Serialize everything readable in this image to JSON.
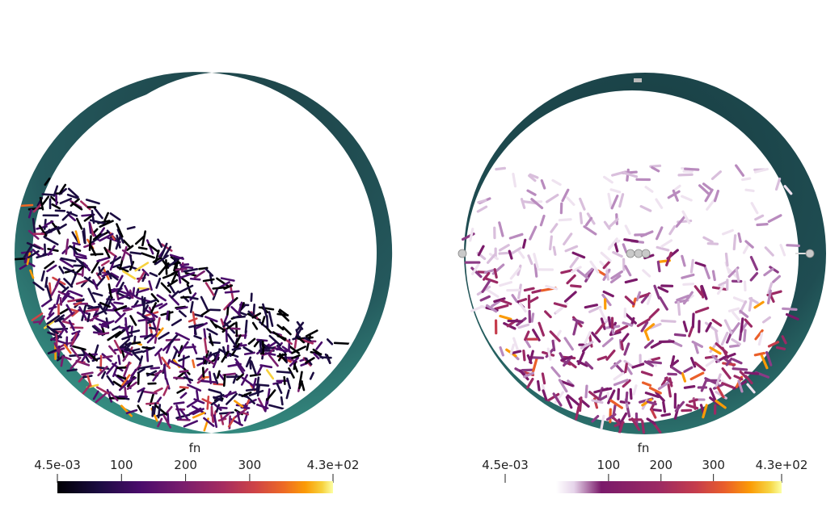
{
  "chart_data": [
    {
      "type": "3d-render-contact-network",
      "panel": "left",
      "colormap": "inferno",
      "legend": {
        "title": "fn",
        "range": [
          0.0045,
          430
        ],
        "ticks": [
          "4.5e-03",
          "100",
          "200",
          "300",
          "4.3e+02"
        ],
        "tick_values": [
          0.0045,
          100,
          200,
          300,
          430
        ]
      }
    },
    {
      "type": "3d-render-contact-network",
      "panel": "right",
      "colormap": "inferno-with-transparent-low",
      "legend": {
        "title": "fn",
        "range": [
          0.0045,
          430
        ],
        "ticks": [
          "4.5e-03",
          "100",
          "200",
          "300",
          "4.3e+02"
        ],
        "tick_values": [
          0.0045,
          100,
          200,
          300,
          430
        ]
      }
    }
  ]
}
